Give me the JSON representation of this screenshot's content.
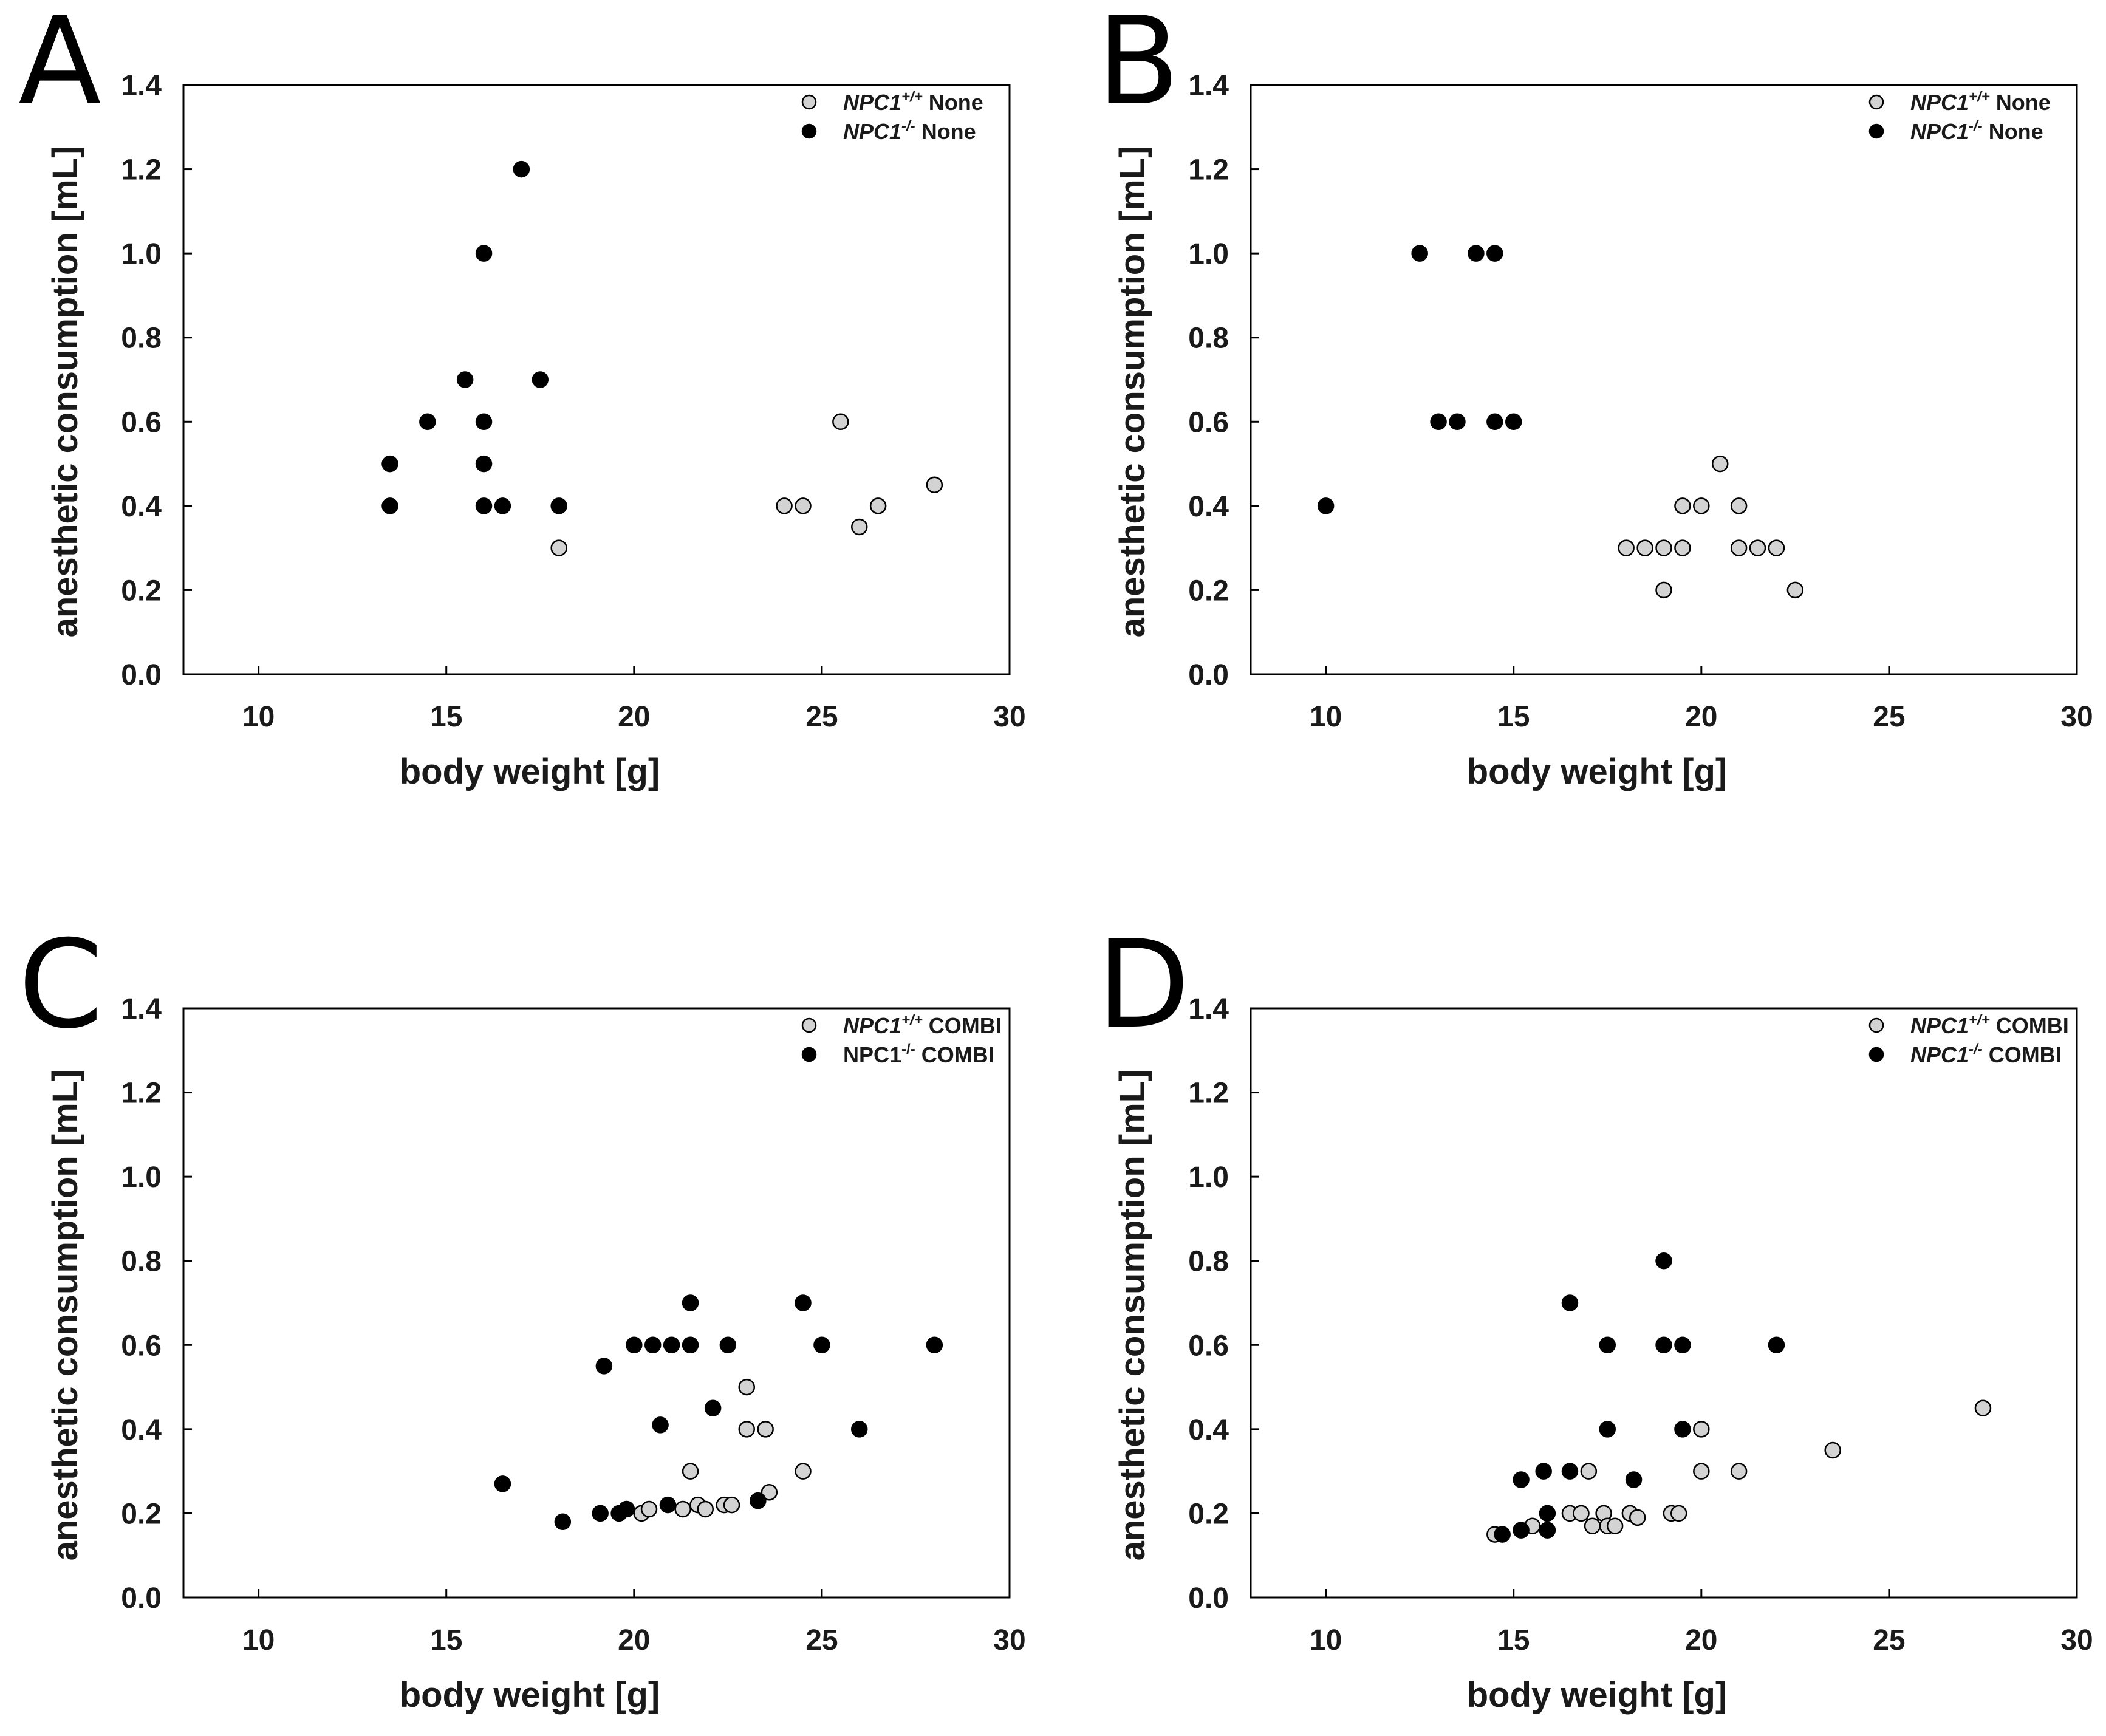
{
  "chart_data": [
    {
      "panel": "A",
      "type": "scatter",
      "xlabel": "body weight [g]",
      "ylabel": "anesthetic consumption [mL]",
      "xlim": [
        8,
        30
      ],
      "ylim": [
        0,
        1.4
      ],
      "xticks": [
        "10",
        "15",
        "20",
        "25",
        "30"
      ],
      "yticks": [
        "0.0",
        "0.2",
        "0.4",
        "0.6",
        "0.8",
        "1.0",
        "1.2",
        "1.4"
      ],
      "legend_position": "top-right",
      "series": [
        {
          "gene": "NPC1",
          "sup": "+/+",
          "label": "None",
          "gene_italic": true,
          "fill": "#d3d3d3",
          "points": [
            [
              18,
              0.3
            ],
            [
              24,
              0.4
            ],
            [
              24.5,
              0.4
            ],
            [
              25.5,
              0.6
            ],
            [
              26,
              0.35
            ],
            [
              26.5,
              0.4
            ],
            [
              28,
              0.45
            ]
          ]
        },
        {
          "gene": "NPC1",
          "sup": "-/-",
          "label": "None",
          "gene_italic": true,
          "fill": "#000000",
          "points": [
            [
              13.5,
              0.5
            ],
            [
              13.5,
              0.4
            ],
            [
              14.5,
              0.6
            ],
            [
              15.5,
              0.7
            ],
            [
              16,
              1.0
            ],
            [
              16,
              0.6
            ],
            [
              16,
              0.5
            ],
            [
              16,
              0.4
            ],
            [
              16.5,
              0.4
            ],
            [
              17,
              1.2
            ],
            [
              17.5,
              0.7
            ],
            [
              18,
              0.4
            ]
          ]
        }
      ]
    },
    {
      "panel": "B",
      "type": "scatter",
      "xlabel": "body weight [g]",
      "ylabel": "anesthetic consumption [mL]",
      "xlim": [
        8,
        30
      ],
      "ylim": [
        0,
        1.4
      ],
      "xticks": [
        "10",
        "15",
        "20",
        "25",
        "30"
      ],
      "yticks": [
        "0.0",
        "0.2",
        "0.4",
        "0.6",
        "0.8",
        "1.0",
        "1.2",
        "1.4"
      ],
      "legend_position": "top-right",
      "series": [
        {
          "gene": "NPC1",
          "sup": "+/+",
          "label": "None",
          "gene_italic": true,
          "fill": "#d3d3d3",
          "points": [
            [
              18,
              0.3
            ],
            [
              18.5,
              0.3
            ],
            [
              19,
              0.3
            ],
            [
              19,
              0.2
            ],
            [
              19.5,
              0.4
            ],
            [
              19.5,
              0.3
            ],
            [
              20,
              0.4
            ],
            [
              20.5,
              0.5
            ],
            [
              21,
              0.4
            ],
            [
              21,
              0.3
            ],
            [
              21.5,
              0.3
            ],
            [
              22,
              0.3
            ],
            [
              22.5,
              0.2
            ]
          ]
        },
        {
          "gene": "NPC1",
          "sup": "-/-",
          "label": "None",
          "gene_italic": true,
          "fill": "#000000",
          "points": [
            [
              10,
              0.4
            ],
            [
              12.5,
              1.0
            ],
            [
              13,
              0.6
            ],
            [
              13.5,
              0.6
            ],
            [
              14,
              1.0
            ],
            [
              14.5,
              1.0
            ],
            [
              14.5,
              0.6
            ],
            [
              15,
              0.6
            ]
          ]
        }
      ]
    },
    {
      "panel": "C",
      "type": "scatter",
      "xlabel": "body weight [g]",
      "ylabel": "anesthetic consumption [mL]",
      "xlim": [
        8,
        30
      ],
      "ylim": [
        0,
        1.4
      ],
      "xticks": [
        "10",
        "15",
        "20",
        "25",
        "30"
      ],
      "yticks": [
        "0.0",
        "0.2",
        "0.4",
        "0.6",
        "0.8",
        "1.0",
        "1.2",
        "1.4"
      ],
      "legend_position": "top-right",
      "series": [
        {
          "gene": "NPC1",
          "sup": "+/+",
          "label": "COMBI",
          "gene_italic": true,
          "fill": "#d3d3d3",
          "points": [
            [
              20.2,
              0.2
            ],
            [
              20.4,
              0.21
            ],
            [
              21.3,
              0.21
            ],
            [
              21.5,
              0.3
            ],
            [
              21.7,
              0.22
            ],
            [
              21.9,
              0.21
            ],
            [
              22.4,
              0.22
            ],
            [
              22.6,
              0.22
            ],
            [
              23,
              0.5
            ],
            [
              23,
              0.4
            ],
            [
              23.5,
              0.4
            ],
            [
              23.6,
              0.25
            ],
            [
              24.5,
              0.3
            ]
          ]
        },
        {
          "gene": "NPC1",
          "sup": "-/-",
          "label": "COMBI",
          "gene_italic": false,
          "fill": "#000000",
          "points": [
            [
              16.5,
              0.27
            ],
            [
              18.1,
              0.18
            ],
            [
              19.1,
              0.2
            ],
            [
              19.2,
              0.55
            ],
            [
              19.6,
              0.2
            ],
            [
              19.8,
              0.21
            ],
            [
              20,
              0.6
            ],
            [
              20.5,
              0.6
            ],
            [
              20.7,
              0.41
            ],
            [
              20.9,
              0.22
            ],
            [
              21,
              0.6
            ],
            [
              21.5,
              0.7
            ],
            [
              21.5,
              0.6
            ],
            [
              22.1,
              0.45
            ],
            [
              22.5,
              0.6
            ],
            [
              23.3,
              0.23
            ],
            [
              24.5,
              0.7
            ],
            [
              25,
              0.6
            ],
            [
              26,
              0.4
            ],
            [
              28,
              0.6
            ]
          ]
        }
      ]
    },
    {
      "panel": "D",
      "type": "scatter",
      "xlabel": "body weight [g]",
      "ylabel": "anesthetic consumption [mL]",
      "xlim": [
        8,
        30
      ],
      "ylim": [
        0,
        1.4
      ],
      "xticks": [
        "10",
        "15",
        "20",
        "25",
        "30"
      ],
      "yticks": [
        "0.0",
        "0.2",
        "0.4",
        "0.6",
        "0.8",
        "1.0",
        "1.2",
        "1.4"
      ],
      "legend_position": "top-right",
      "series": [
        {
          "gene": "NPC1",
          "sup": "+/+",
          "label": "COMBI",
          "gene_italic": true,
          "fill": "#d3d3d3",
          "points": [
            [
              14.5,
              0.15
            ],
            [
              15.5,
              0.17
            ],
            [
              16.5,
              0.2
            ],
            [
              16.8,
              0.2
            ],
            [
              17,
              0.3
            ],
            [
              17.1,
              0.17
            ],
            [
              17.4,
              0.2
            ],
            [
              17.5,
              0.17
            ],
            [
              17.7,
              0.17
            ],
            [
              18.1,
              0.2
            ],
            [
              18.3,
              0.19
            ],
            [
              19.2,
              0.2
            ],
            [
              19.4,
              0.2
            ],
            [
              20,
              0.4
            ],
            [
              20,
              0.3
            ],
            [
              21,
              0.3
            ],
            [
              23.5,
              0.35
            ],
            [
              27.5,
              0.45
            ]
          ]
        },
        {
          "gene": "NPC1",
          "sup": "-/-",
          "label": "COMBI",
          "gene_italic": true,
          "fill": "#000000",
          "points": [
            [
              14.7,
              0.15
            ],
            [
              15.2,
              0.28
            ],
            [
              15.2,
              0.16
            ],
            [
              15.8,
              0.3
            ],
            [
              15.9,
              0.2
            ],
            [
              15.9,
              0.16
            ],
            [
              16.5,
              0.7
            ],
            [
              16.5,
              0.3
            ],
            [
              17.5,
              0.6
            ],
            [
              17.5,
              0.4
            ],
            [
              18.2,
              0.28
            ],
            [
              19,
              0.8
            ],
            [
              19,
              0.6
            ],
            [
              19.5,
              0.6
            ],
            [
              19.5,
              0.4
            ],
            [
              22,
              0.6
            ]
          ]
        }
      ]
    }
  ]
}
